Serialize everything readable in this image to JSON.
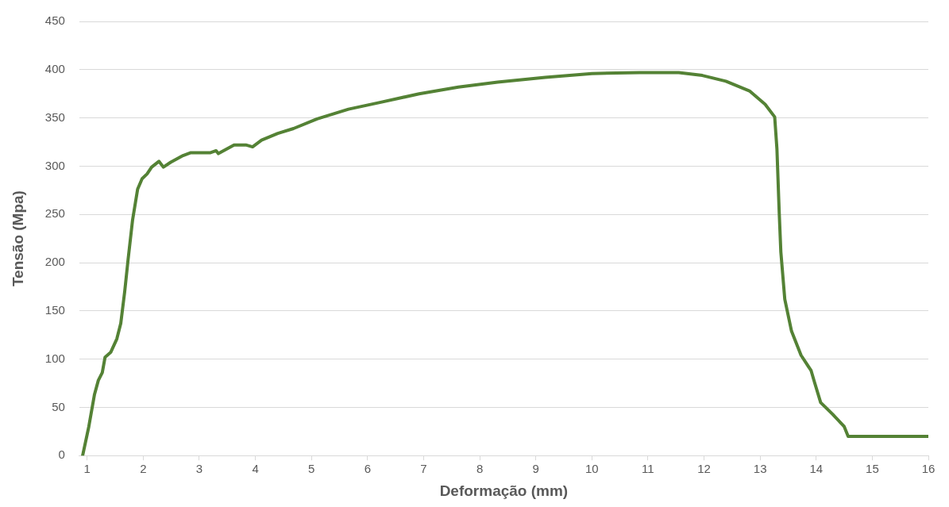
{
  "chart_data": {
    "type": "line",
    "xlabel": "Deformação (mm)",
    "ylabel": "Tensão (Mpa)",
    "xlim": [
      0.86,
      16
    ],
    "xticks": [
      1,
      2,
      3,
      4,
      5,
      6,
      7,
      8,
      9,
      10,
      11,
      12,
      13,
      14,
      15,
      16
    ],
    "ylim": [
      0,
      450
    ],
    "yticks": [
      0,
      50,
      100,
      150,
      200,
      250,
      300,
      350,
      400,
      450
    ],
    "grid": "y",
    "legend": false,
    "marker": "none",
    "line_style": "solid",
    "series": [
      {
        "color": "#548235",
        "x": [
          0.92,
          1.03,
          1.13,
          1.2,
          1.27,
          1.32,
          1.42,
          1.53,
          1.6,
          1.67,
          1.73,
          1.81,
          1.9,
          1.98,
          2.07,
          2.15,
          2.28,
          2.36,
          2.49,
          2.71,
          2.85,
          3.2,
          3.3,
          3.34,
          3.62,
          3.83,
          3.95,
          4.11,
          4.4,
          4.68,
          5.1,
          5.66,
          6.22,
          6.92,
          7.62,
          8.32,
          9.17,
          10.0,
          10.85,
          11.55,
          11.97,
          12.39,
          12.81,
          13.09,
          13.26,
          13.3,
          13.34,
          13.37,
          13.44,
          13.56,
          13.73,
          13.91,
          13.97,
          14.08,
          14.29,
          14.5,
          14.57,
          16
        ],
        "values": [
          0,
          30,
          63,
          78,
          86,
          102,
          107,
          121,
          137,
          170,
          203,
          244,
          276,
          287,
          292,
          299,
          305,
          299,
          304,
          311,
          314,
          314,
          316,
          313,
          322,
          322,
          320,
          327,
          334,
          339,
          349,
          359,
          366,
          375,
          382,
          387,
          392,
          396,
          397,
          397,
          394,
          388,
          378,
          364,
          351,
          318,
          253,
          211,
          162,
          129,
          104,
          88,
          76,
          55,
          43,
          30,
          20,
          20
        ]
      }
    ]
  }
}
